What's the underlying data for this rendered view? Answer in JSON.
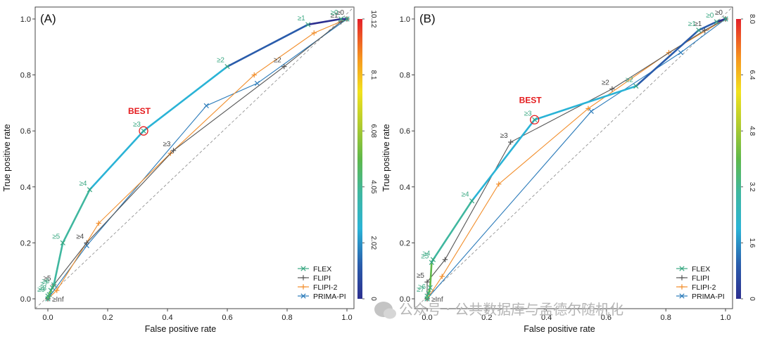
{
  "watermark": {
    "text": "公众号 · 公共数据库与孟德尔随机化"
  },
  "colors": {
    "FLEX": "#2ca02c",
    "FLEX_marker": "#3aa882",
    "FLIPI": "#555555",
    "FLIPI-2": "#f28e2b",
    "PRIMA-PI": "#2b7bba",
    "best": "#e41a1c"
  },
  "chart_data": [
    {
      "type": "line",
      "panel_label": "(A)",
      "xlabel": "False positive rate",
      "ylabel": "True positive rate",
      "xlim": [
        0,
        1
      ],
      "ylim": [
        0,
        1
      ],
      "xticks": [
        "0.0",
        "0.2",
        "0.4",
        "0.6",
        "0.8",
        "1.0"
      ],
      "yticks": [
        "0.0",
        "0.2",
        "0.4",
        "0.6",
        "0.8",
        "1.0"
      ],
      "diagonal_reference": true,
      "legend_position": "bottom-right",
      "colorbar": {
        "min": 0,
        "max": 10.12,
        "ticks": [
          "0",
          "2.02",
          "4.05",
          "6.08",
          "8.1",
          "10.12"
        ]
      },
      "best": {
        "label": "BEST",
        "x": 0.32,
        "y": 0.6
      },
      "series": [
        {
          "name": "FLEX",
          "points": [
            [
              0,
              0
            ],
            [
              0,
              0.01
            ],
            [
              0.005,
              0.015
            ],
            [
              0.01,
              0.03
            ],
            [
              0.015,
              0.04
            ],
            [
              0.02,
              0.05
            ],
            [
              0.05,
              0.2
            ],
            [
              0.14,
              0.39
            ],
            [
              0.32,
              0.6
            ],
            [
              0.6,
              0.83
            ],
            [
              0.87,
              0.98
            ],
            [
              0.98,
              1.0
            ],
            [
              1,
              1
            ]
          ],
          "labels": [
            "",
            "≥9",
            "≥8",
            "≥7",
            "≥6",
            "",
            "≥5",
            "≥4",
            "≥3",
            "≥2",
            "≥1",
            "≥0",
            ""
          ]
        },
        {
          "name": "FLIPI",
          "points": [
            [
              0,
              0
            ],
            [
              0.02,
              0.05
            ],
            [
              0.13,
              0.2
            ],
            [
              0.42,
              0.53
            ],
            [
              0.79,
              0.83
            ],
            [
              0.98,
              0.99
            ],
            [
              1,
              1
            ]
          ],
          "labels": [
            "≥Inf",
            "≥5",
            "≥4",
            "≥3",
            "≥2",
            "≥1",
            "≥0"
          ]
        },
        {
          "name": "FLIPI-2",
          "points": [
            [
              0,
              0
            ],
            [
              0.03,
              0.03
            ],
            [
              0.17,
              0.27
            ],
            [
              0.41,
              0.52
            ],
            [
              0.69,
              0.8
            ],
            [
              0.89,
              0.95
            ],
            [
              1,
              1
            ]
          ]
        },
        {
          "name": "PRIMA-PI",
          "points": [
            [
              0,
              0
            ],
            [
              0.13,
              0.19
            ],
            [
              0.53,
              0.69
            ],
            [
              0.7,
              0.77
            ],
            [
              1,
              1
            ]
          ]
        }
      ]
    },
    {
      "type": "line",
      "panel_label": "(B)",
      "xlabel": "False positive rate",
      "ylabel": "True positive rate",
      "xlim": [
        0,
        1
      ],
      "ylim": [
        0,
        1
      ],
      "xticks": [
        "0.0",
        "0.2",
        "0.4",
        "0.6",
        "0.8",
        "1.0"
      ],
      "yticks": [
        "0.0",
        "0.2",
        "0.4",
        "0.6",
        "0.8",
        "1.0"
      ],
      "diagonal_reference": true,
      "legend_position": "bottom-right",
      "colorbar": {
        "min": 0,
        "max": 8.0,
        "ticks": [
          "0",
          "1.6",
          "3.2",
          "4.8",
          "6.4",
          "8.0"
        ]
      },
      "best": {
        "label": "BEST",
        "x": 0.36,
        "y": 0.64
      },
      "series": [
        {
          "name": "FLEX",
          "points": [
            [
              0,
              0
            ],
            [
              0,
              0.01
            ],
            [
              0.005,
              0.02
            ],
            [
              0.01,
              0.04
            ],
            [
              0.015,
              0.13
            ],
            [
              0.02,
              0.14
            ],
            [
              0.15,
              0.35
            ],
            [
              0.36,
              0.64
            ],
            [
              0.7,
              0.76
            ],
            [
              0.91,
              0.96
            ],
            [
              0.97,
              0.99
            ],
            [
              1,
              1
            ]
          ],
          "labels": [
            "",
            "≥7",
            "≥6",
            "",
            "≥5",
            "≥4",
            "≥4",
            "≥3",
            "≥2",
            "≥1",
            "≥0",
            ""
          ]
        },
        {
          "name": "FLIPI",
          "points": [
            [
              0,
              0
            ],
            [
              0,
              0.06
            ],
            [
              0.06,
              0.14
            ],
            [
              0.28,
              0.56
            ],
            [
              0.62,
              0.75
            ],
            [
              0.93,
              0.96
            ],
            [
              1,
              1
            ]
          ],
          "labels": [
            "≥Inf",
            "≥5",
            "",
            "≥3",
            "≥2",
            "≥1",
            "≥0"
          ]
        },
        {
          "name": "FLIPI-2",
          "points": [
            [
              0,
              0
            ],
            [
              0.05,
              0.08
            ],
            [
              0.24,
              0.41
            ],
            [
              0.54,
              0.68
            ],
            [
              0.81,
              0.88
            ],
            [
              1,
              1
            ]
          ]
        },
        {
          "name": "PRIMA-PI",
          "points": [
            [
              0,
              0
            ],
            [
              0.55,
              0.67
            ],
            [
              0.85,
              0.88
            ],
            [
              1,
              1
            ]
          ]
        }
      ]
    }
  ]
}
